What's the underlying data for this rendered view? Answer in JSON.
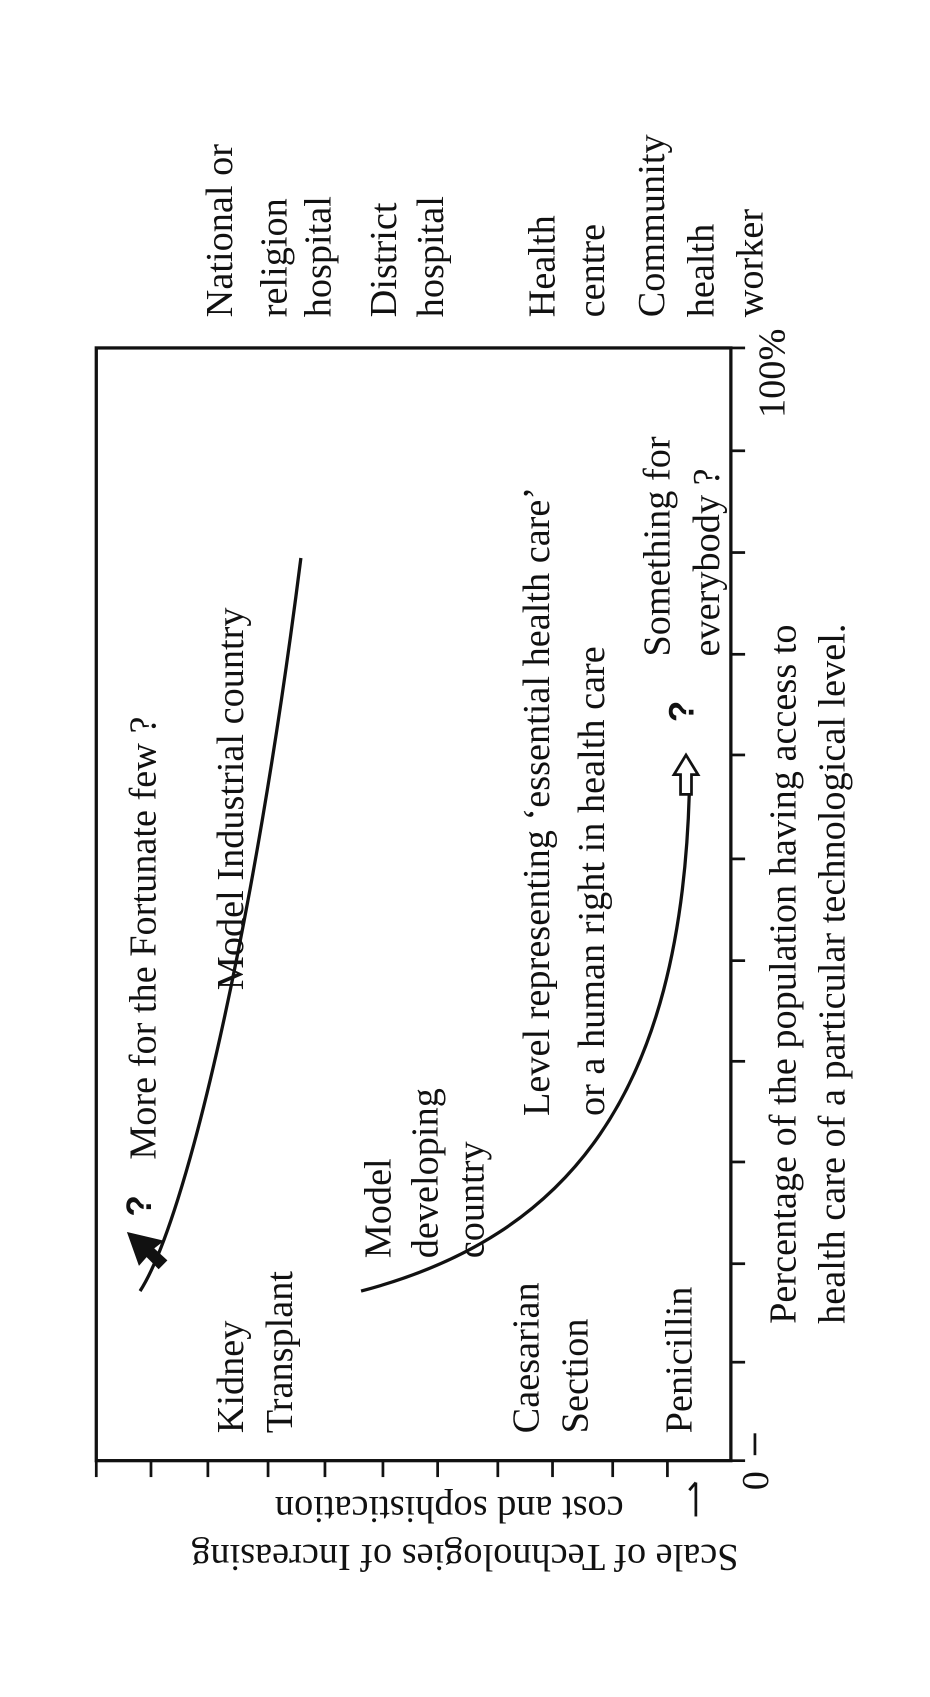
{
  "y_axis_label": [
    "Scale of Technologies of Increasing",
    "cost and sophistication"
  ],
  "x_axis_label": [
    "Percentage of the population having access to",
    "health care of a particular technological level."
  ],
  "x_axis_ends": [
    "0",
    "100%"
  ],
  "levels": [
    [
      "National or",
      "religion",
      "hospital"
    ],
    [
      "District",
      "hospital"
    ],
    [
      "Health",
      "centre"
    ],
    [
      "Community",
      "health",
      "worker"
    ]
  ],
  "technologies": [
    [
      "Kidney",
      "Transplant"
    ],
    [
      "Caesarian",
      "Section"
    ],
    [
      "Penicillin"
    ]
  ],
  "curves": {
    "industrial": "Model Industrial country",
    "developing": [
      "Model",
      "developing",
      "country"
    ]
  },
  "notes": {
    "fortunate": "More for the Fortunate few ?",
    "level": [
      "Level representing ‘essential health care’",
      "or a human right in health care"
    ],
    "everybody": [
      "Something for",
      "everybody ?"
    ],
    "question_marks": [
      "?",
      "?"
    ]
  }
}
